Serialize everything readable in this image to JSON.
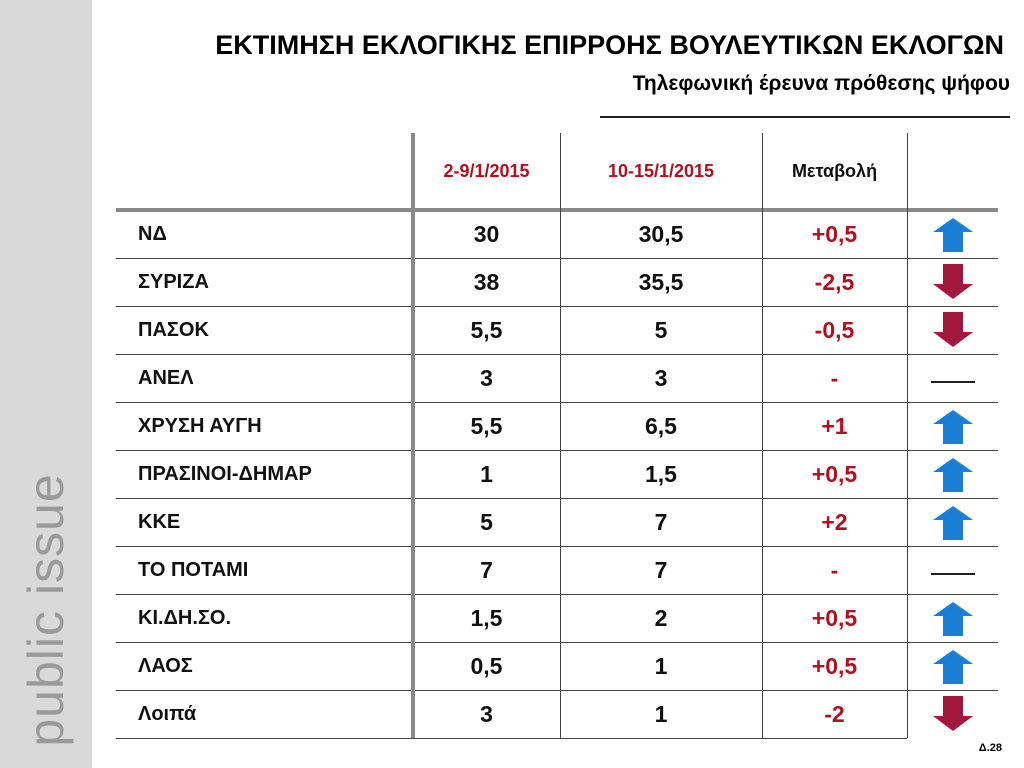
{
  "header": {
    "title": "ΕΚΤΙΜΗΣΗ ΕΚΛΟΓΙΚΗΣ ΕΠΙΡΡΟΗΣ ΒΟΥΛΕΥΤΙΚΩΝ ΕΚΛΟΓΩΝ",
    "subtitle": "Τηλεφωνική έρευνα πρόθεσης ψήφου"
  },
  "sidebar": {
    "brand": "public issue"
  },
  "table": {
    "columns": [
      "2-9/1/2015",
      "10-15/1/2015",
      "Μεταβολή"
    ],
    "rows": [
      {
        "cells": [
          "ΝΔ",
          "30",
          "30,5",
          "+0,5"
        ],
        "trend": "up"
      },
      {
        "cells": [
          "ΣΥΡΙΖΑ",
          "38",
          "35,5",
          "-2,5"
        ],
        "trend": "down"
      },
      {
        "cells": [
          "ΠΑΣΟΚ",
          "5,5",
          "5",
          "-0,5"
        ],
        "trend": "down"
      },
      {
        "cells": [
          "ΑΝΕΛ",
          "3",
          "3",
          "-"
        ],
        "trend": "flat"
      },
      {
        "cells": [
          "ΧΡΥΣΗ ΑΥΓΗ",
          "5,5",
          "6,5",
          "+1"
        ],
        "trend": "up"
      },
      {
        "cells": [
          "ΠΡΑΣΙΝΟΙ-ΔΗΜΑΡ",
          "1",
          "1,5",
          "+0,5"
        ],
        "trend": "up"
      },
      {
        "cells": [
          "ΚΚΕ",
          "5",
          "7",
          "+2"
        ],
        "trend": "up"
      },
      {
        "cells": [
          "ΤΟ ΠΟΤΑΜΙ",
          "7",
          "7",
          "-"
        ],
        "trend": "flat"
      },
      {
        "cells": [
          "ΚΙ.ΔΗ.ΣΟ.",
          "1,5",
          "2",
          "+0,5"
        ],
        "trend": "up"
      },
      {
        "cells": [
          "ΛΑΟΣ",
          "0,5",
          "1",
          "+0,5"
        ],
        "trend": "up"
      },
      {
        "cells": [
          "Λοιπά",
          "3",
          "1",
          "-2"
        ],
        "trend": "down"
      }
    ]
  },
  "footer": {
    "page": "Δ.28"
  }
}
